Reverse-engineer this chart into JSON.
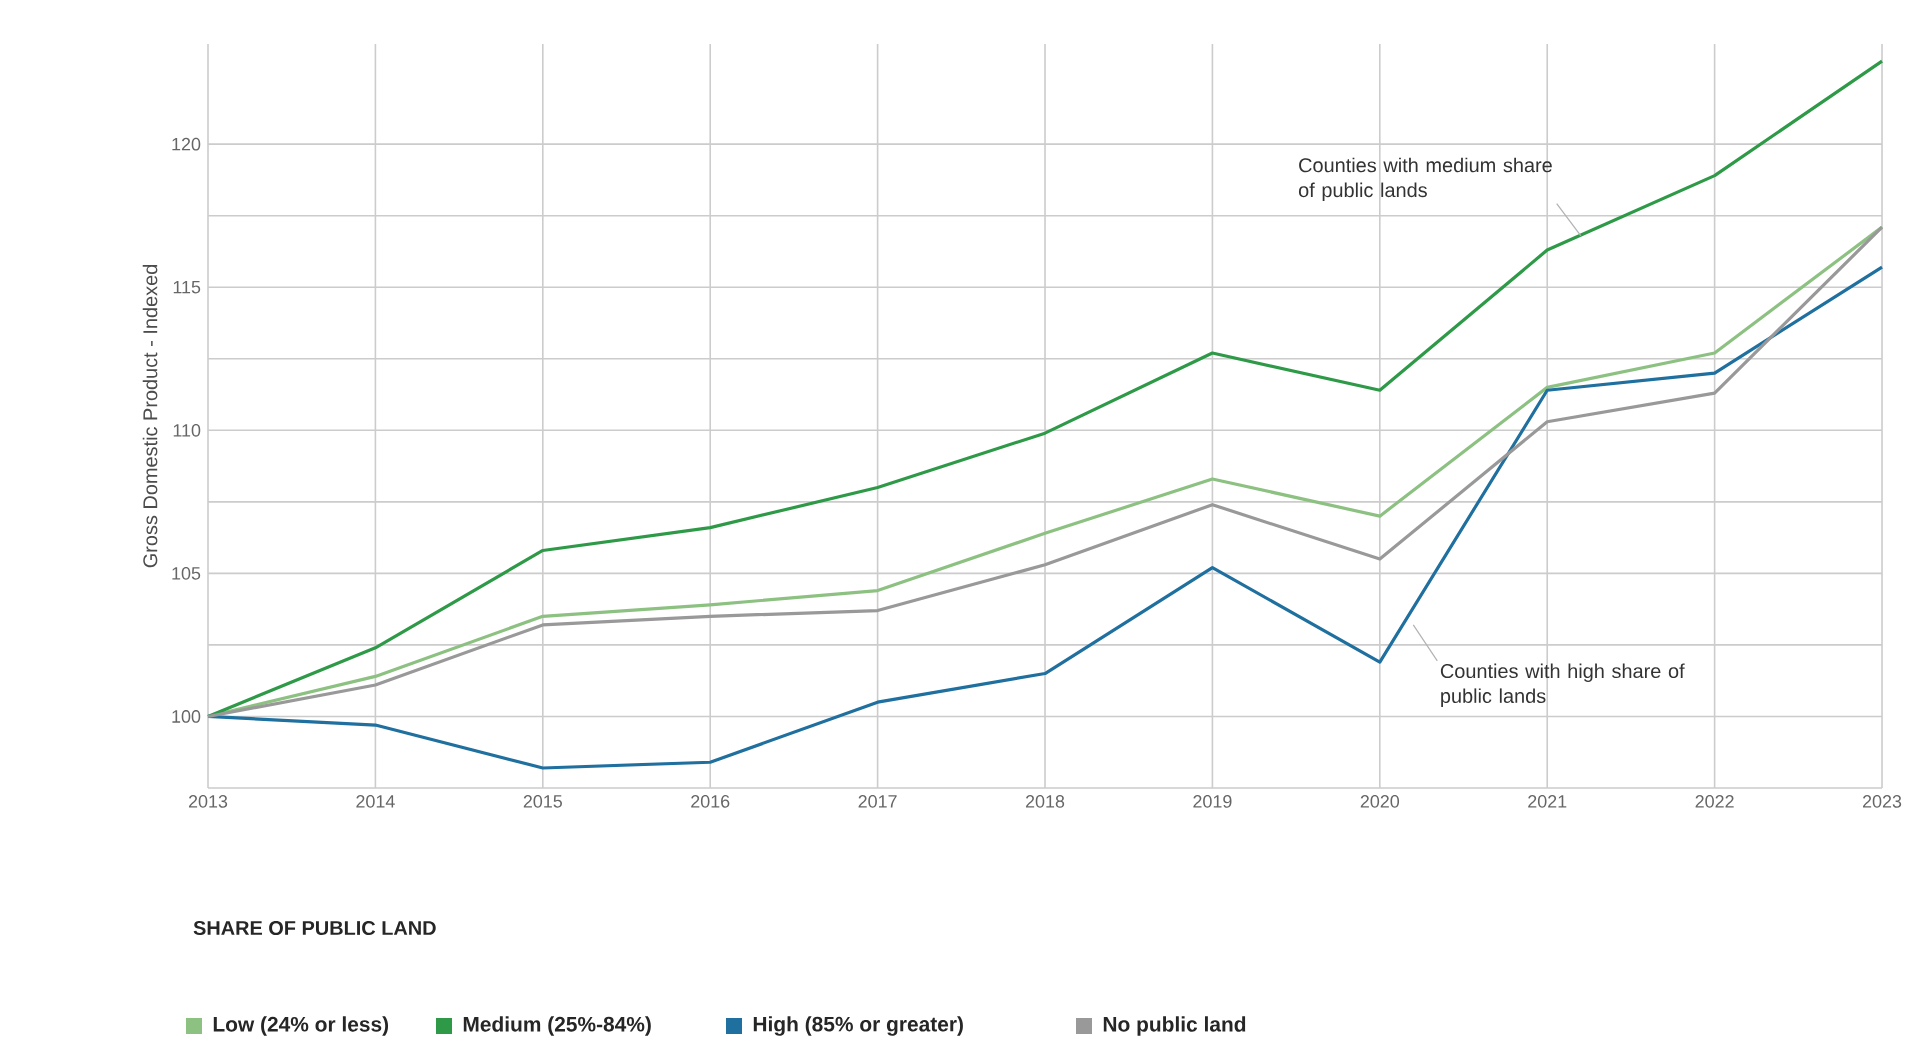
{
  "chart_data": {
    "type": "line",
    "ylabel": "Gross Domestic Product - Indexed",
    "legend_title": "SHARE OF PUBLIC LAND",
    "x": [
      2013,
      2014,
      2015,
      2016,
      2017,
      2018,
      2019,
      2020,
      2021,
      2022,
      2023
    ],
    "xlim": [
      2013,
      2023
    ],
    "xticks": [
      2013,
      2014,
      2015,
      2016,
      2017,
      2018,
      2019,
      2020,
      2021,
      2022,
      2023
    ],
    "ylim": [
      97.5,
      123.5
    ],
    "yticks": [
      {
        "value": 97.5,
        "label": null
      },
      100,
      {
        "value": 102.5,
        "label": null
      },
      105,
      {
        "value": 107.5,
        "label": null
      },
      110,
      {
        "value": 112.5,
        "label": null
      },
      115,
      {
        "value": 117.5,
        "label": null
      },
      120
    ],
    "series": [
      {
        "name": "Low (24% or less)",
        "color": "#8dc182",
        "values": [
          100,
          101.4,
          103.5,
          103.9,
          104.4,
          106.4,
          108.3,
          107.0,
          111.5,
          112.7,
          117.1
        ]
      },
      {
        "name": "Medium (25%-84%)",
        "color": "#2e9a48",
        "values": [
          100,
          102.4,
          105.8,
          106.6,
          108.0,
          109.9,
          112.7,
          111.4,
          116.3,
          118.9,
          122.9
        ]
      },
      {
        "name": "High (85% or greater)",
        "color": "#1f6f9f",
        "values": [
          100,
          99.7,
          98.2,
          98.4,
          100.5,
          101.5,
          105.2,
          101.9,
          111.4,
          112.0,
          115.7
        ]
      },
      {
        "name": "No public land",
        "color": "#999999",
        "values": [
          100,
          101.1,
          103.2,
          103.5,
          103.7,
          105.3,
          107.4,
          105.5,
          110.3,
          111.3,
          117.1
        ]
      }
    ],
    "annotations": [
      {
        "text": "Counties with medium share of public lands",
        "x": 2021.2,
        "y": 116.8
      },
      {
        "text": "Counties with high share of public lands",
        "x": 2020.2,
        "y": 103.2
      }
    ],
    "grid": true,
    "legend": "bottom",
    "marker": "none",
    "line_style": "solid"
  }
}
